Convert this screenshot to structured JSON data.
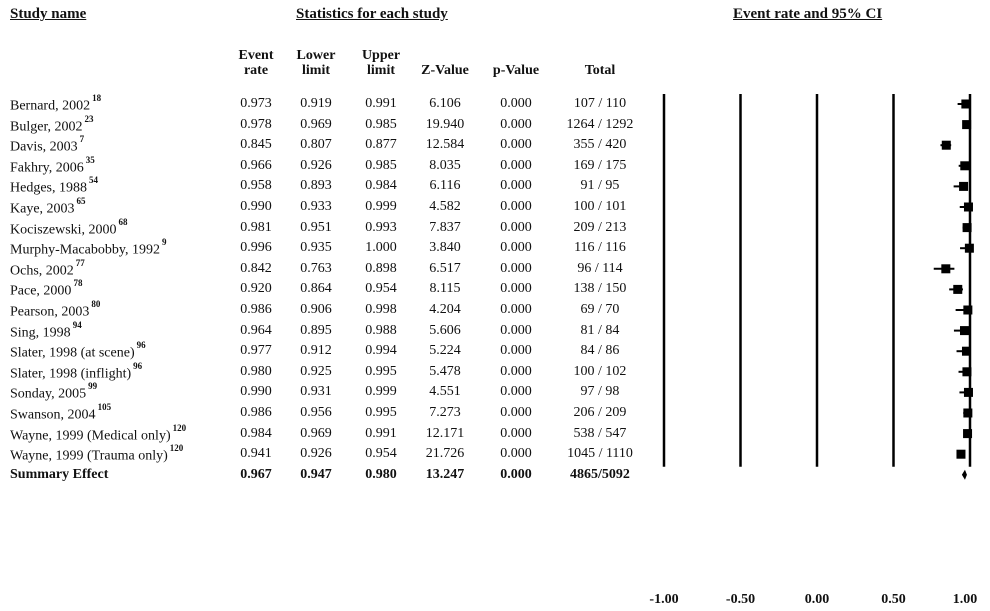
{
  "headers": {
    "study_name": "Study name",
    "statistics": "Statistics for each study",
    "plot": "Event rate and 95% CI"
  },
  "columns": {
    "event_rate": [
      "Event",
      "rate"
    ],
    "lower_limit": [
      "Lower",
      "limit"
    ],
    "upper_limit": [
      "Upper",
      "limit"
    ],
    "z_value": "Z-Value",
    "p_value": "p-Value",
    "total": "Total"
  },
  "chart_data": {
    "type": "forest",
    "xlim": [
      -1.0,
      1.0
    ],
    "xticks": [
      "-1.00",
      "-0.50",
      "0.00",
      "0.50",
      "1.00"
    ],
    "xtick_values": [
      -1.0,
      -0.5,
      0.0,
      0.5,
      1.0
    ],
    "studies": [
      {
        "name": "Bernard, 2002",
        "ref": "18",
        "rate": "0.973",
        "lower": "0.919",
        "upper": "0.991",
        "z": "6.106",
        "p": "0.000",
        "total": "107 / 110"
      },
      {
        "name": "Bulger, 2002",
        "ref": "23",
        "rate": "0.978",
        "lower": "0.969",
        "upper": "0.985",
        "z": "19.940",
        "p": "0.000",
        "total": "1264 / 1292"
      },
      {
        "name": "Davis, 2003",
        "ref": "7",
        "rate": "0.845",
        "lower": "0.807",
        "upper": "0.877",
        "z": "12.584",
        "p": "0.000",
        "total": "355 / 420"
      },
      {
        "name": "Fakhry, 2006",
        "ref": "35",
        "rate": "0.966",
        "lower": "0.926",
        "upper": "0.985",
        "z": "8.035",
        "p": "0.000",
        "total": "169 / 175"
      },
      {
        "name": "Hedges, 1988",
        "ref": "54",
        "rate": "0.958",
        "lower": "0.893",
        "upper": "0.984",
        "z": "6.116",
        "p": "0.000",
        "total": "91 / 95"
      },
      {
        "name": "Kaye, 2003",
        "ref": "65",
        "rate": "0.990",
        "lower": "0.933",
        "upper": "0.999",
        "z": "4.582",
        "p": "0.000",
        "total": "100 / 101"
      },
      {
        "name": "Kociszewski, 2000",
        "ref": "68",
        "rate": "0.981",
        "lower": "0.951",
        "upper": "0.993",
        "z": "7.837",
        "p": "0.000",
        "total": "209 / 213"
      },
      {
        "name": "Murphy-Macabobby, 1992",
        "ref": "9",
        "rate": "0.996",
        "lower": "0.935",
        "upper": "1.000",
        "z": "3.840",
        "p": "0.000",
        "total": "116 / 116"
      },
      {
        "name": "Ochs, 2002",
        "ref": "77",
        "rate": "0.842",
        "lower": "0.763",
        "upper": "0.898",
        "z": "6.517",
        "p": "0.000",
        "total": "96 / 114"
      },
      {
        "name": "Pace, 2000",
        "ref": "78",
        "rate": "0.920",
        "lower": "0.864",
        "upper": "0.954",
        "z": "8.115",
        "p": "0.000",
        "total": "138 / 150"
      },
      {
        "name": "Pearson, 2003",
        "ref": "80",
        "rate": "0.986",
        "lower": "0.906",
        "upper": "0.998",
        "z": "4.204",
        "p": "0.000",
        "total": "69 / 70"
      },
      {
        "name": "Sing, 1998",
        "ref": "94",
        "rate": "0.964",
        "lower": "0.895",
        "upper": "0.988",
        "z": "5.606",
        "p": "0.000",
        "total": "81 / 84"
      },
      {
        "name": "Slater, 1998 (at scene)",
        "ref": "96",
        "rate": "0.977",
        "lower": "0.912",
        "upper": "0.994",
        "z": "5.224",
        "p": "0.000",
        "total": "84 / 86"
      },
      {
        "name": "Slater, 1998 (inflight)",
        "ref": "96",
        "rate": "0.980",
        "lower": "0.925",
        "upper": "0.995",
        "z": "5.478",
        "p": "0.000",
        "total": "100 / 102"
      },
      {
        "name": "Sonday, 2005",
        "ref": "99",
        "rate": "0.990",
        "lower": "0.931",
        "upper": "0.999",
        "z": "4.551",
        "p": "0.000",
        "total": "97 / 98"
      },
      {
        "name": "Swanson, 2004",
        "ref": "105",
        "rate": "0.986",
        "lower": "0.956",
        "upper": "0.995",
        "z": "7.273",
        "p": "0.000",
        "total": "206 / 209"
      },
      {
        "name": "Wayne, 1999  (Medical only)",
        "ref": "120",
        "rate": "0.984",
        "lower": "0.969",
        "upper": "0.991",
        "z": "12.171",
        "p": "0.000",
        "total": "538 / 547"
      },
      {
        "name": "Wayne, 1999  (Trauma only)",
        "ref": "120",
        "rate": "0.941",
        "lower": "0.926",
        "upper": "0.954",
        "z": "21.726",
        "p": "0.000",
        "total": "1045 / 1110"
      }
    ],
    "summary": {
      "name": "Summary Effect",
      "rate": "0.967",
      "lower": "0.947",
      "upper": "0.980",
      "z": "13.247",
      "p": "0.000",
      "total": "4865/5092"
    }
  }
}
